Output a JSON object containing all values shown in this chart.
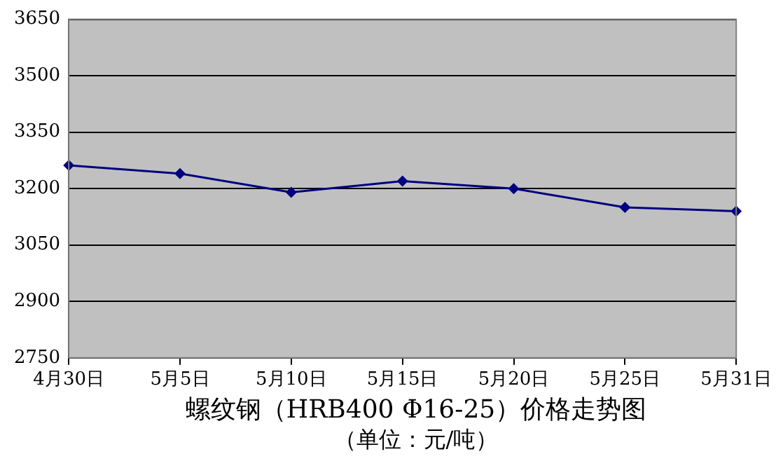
{
  "chart_data": {
    "type": "line",
    "title": "螺纹钢（HRB400 Φ16-25）价格走势图",
    "subtitle": "（单位：元/吨）",
    "categories": [
      "4月30日",
      "5月5日",
      "5月10日",
      "5月15日",
      "5月20日",
      "5月25日",
      "5月31日"
    ],
    "series": [
      {
        "color": "#000080",
        "values": [
          3262,
          3240,
          3190,
          3220,
          3200,
          3150,
          3140
        ]
      }
    ],
    "ylim": [
      2750,
      3650
    ],
    "yticks": [
      2750,
      2900,
      3050,
      3200,
      3350,
      3500,
      3650
    ],
    "grid": "y",
    "legend": false,
    "marker": "diamond",
    "line_style": "solid"
  }
}
